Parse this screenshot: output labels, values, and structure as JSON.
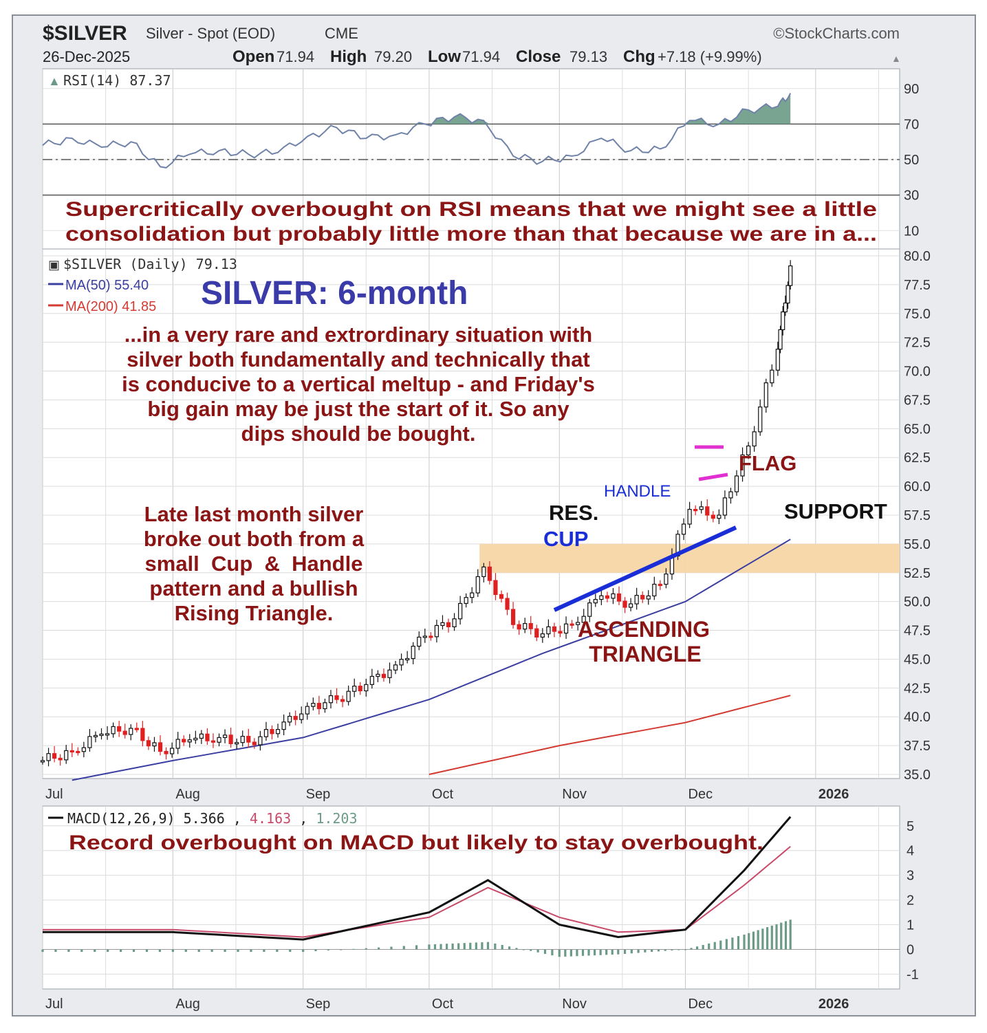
{
  "header": {
    "symbol": "$SILVER",
    "name": "Silver - Spot (EOD)",
    "exchange": "CME",
    "source": "©StockCharts.com",
    "date": "26-Dec-2025",
    "ohlc": [
      {
        "label": "Open",
        "value": "71.94"
      },
      {
        "label": "High",
        "value": "79.20"
      },
      {
        "label": "Low",
        "value": "71.94"
      },
      {
        "label": "Close",
        "value": "79.13"
      },
      {
        "label": "Chg",
        "value": "+7.18 (+9.99%)"
      }
    ],
    "up_arrow": "▲"
  },
  "annotations": {
    "rsi_note_line1": "Supercritically overbought on RSI means that we might see a little",
    "rsi_note_line2": "consolidation but probably little more than that because we are in a...",
    "title": "SILVER: 6-month",
    "main_note": [
      "...in a very rare and extrordinary situation with",
      "silver both fundamentally and technically that",
      "is conducive to a vertical meltup - and Friday's",
      "big gain may be just the start of it. So any",
      "dips should be bought."
    ],
    "left_note": [
      "Late last month silver",
      "broke out both from a",
      "small  Cup  &  Handle",
      "pattern and a bullish",
      "Rising Triangle."
    ],
    "handle": "HANDLE",
    "res": "RES.",
    "cup": "CUP",
    "support": "SUPPORT",
    "flag": "FLAG",
    "ascending": "ASCENDING",
    "triangle": "TRIANGLE",
    "macd_note": "Record overbought on MACD but likely to stay overbought."
  },
  "legends": {
    "rsi": "RSI(14) 87.37",
    "price": "$SILVER (Daily) 79.13",
    "ma50": "MA(50) 55.40",
    "ma200": "MA(200) 41.85",
    "macd_label": "MACD(12,26,9)",
    "macd_values": [
      "5.366",
      "4.163",
      "1.203"
    ]
  },
  "colors": {
    "panel_bg": "#ffffff",
    "frame_bg": "#e9ebee",
    "grid": "#c8c8c8",
    "rsi_line": "#6f82a8",
    "rsi_fill": "#6b9a86",
    "ma50": "#3a3ea0",
    "ma200": "#d43a32",
    "up_candle": "#111111",
    "down_candle": "#e02020",
    "note_red": "#8b1414",
    "title_blue": "#3a3aa8",
    "label_blue": "#1a2ed8",
    "zone": "#f7d6a6",
    "flag": "#e030d0",
    "macd_line": "#111111",
    "signal_line": "#c84a6a",
    "histogram": "#6b9a86"
  },
  "chart_data": [
    {
      "type": "line",
      "name": "RSI(14)",
      "x": [
        "2025-07-01",
        "2025-07-08",
        "2025-07-15",
        "2025-07-22",
        "2025-07-29",
        "2025-08-05",
        "2025-08-12",
        "2025-08-19",
        "2025-08-26",
        "2025-09-02",
        "2025-09-09",
        "2025-09-16",
        "2025-09-23",
        "2025-09-30",
        "2025-10-07",
        "2025-10-14",
        "2025-10-21",
        "2025-10-28",
        "2025-11-04",
        "2025-11-11",
        "2025-11-18",
        "2025-11-25",
        "2025-12-02",
        "2025-12-09",
        "2025-12-16",
        "2025-12-23",
        "2025-12-26"
      ],
      "values": [
        58,
        62,
        57,
        60,
        46,
        53,
        55,
        53,
        54,
        63,
        68,
        62,
        64,
        70,
        74,
        72,
        52,
        49,
        52,
        62,
        55,
        56,
        72,
        70,
        78,
        80,
        87.37
      ],
      "yticks": [
        10,
        30,
        50,
        70,
        90
      ],
      "reference_lines": [
        30,
        50,
        70
      ],
      "ylim": [
        0,
        100
      ]
    },
    {
      "type": "candlestick",
      "name": "$SILVER (Daily)",
      "x": [
        "2025-07-01",
        "2025-07-08",
        "2025-07-15",
        "2025-07-22",
        "2025-07-29",
        "2025-08-05",
        "2025-08-12",
        "2025-08-19",
        "2025-08-26",
        "2025-09-02",
        "2025-09-09",
        "2025-09-16",
        "2025-09-23",
        "2025-09-30",
        "2025-10-07",
        "2025-10-14",
        "2025-10-21",
        "2025-10-28",
        "2025-11-04",
        "2025-11-11",
        "2025-11-18",
        "2025-11-25",
        "2025-12-02",
        "2025-12-09",
        "2025-12-16",
        "2025-12-23",
        "2025-12-26"
      ],
      "close": [
        36.2,
        37.0,
        38.5,
        39.0,
        37.0,
        38.0,
        38.2,
        37.8,
        38.9,
        40.9,
        41.5,
        42.8,
        44.5,
        47.0,
        48.5,
        53.0,
        48.0,
        47.2,
        48.0,
        50.5,
        49.8,
        51.5,
        58.0,
        57.5,
        63.5,
        71.9,
        79.13
      ],
      "series": [
        {
          "name": "MA(50)",
          "x": [
            "2025-07-08",
            "2025-08-01",
            "2025-09-01",
            "2025-10-01",
            "2025-10-28",
            "2025-12-01",
            "2025-12-26"
          ],
          "values": [
            34.5,
            36.2,
            38.2,
            41.5,
            45.5,
            50.0,
            55.4
          ]
        },
        {
          "name": "MA(200)",
          "x": [
            "2025-10-01",
            "2025-11-01",
            "2025-12-01",
            "2025-12-26"
          ],
          "values": [
            35.0,
            37.5,
            39.5,
            41.85
          ]
        }
      ],
      "yticks": [
        35.0,
        37.5,
        40.0,
        42.5,
        45.0,
        47.5,
        50.0,
        52.5,
        55.0,
        57.5,
        60.0,
        62.5,
        65.0,
        67.5,
        70.0,
        72.5,
        75.0,
        77.5,
        80.0
      ],
      "ylim": [
        35,
        80
      ],
      "xticks": [
        "Jul",
        "Aug",
        "Sep",
        "Oct",
        "Nov",
        "Dec",
        "2026"
      ],
      "resistance_zone": [
        52.5,
        55.0
      ]
    },
    {
      "type": "line",
      "name": "MACD(12,26,9)",
      "x": [
        "2025-07-01",
        "2025-08-01",
        "2025-09-01",
        "2025-10-01",
        "2025-10-15",
        "2025-11-01",
        "2025-11-15",
        "2025-12-01",
        "2025-12-15",
        "2025-12-26"
      ],
      "series": [
        {
          "name": "MACD",
          "values": [
            0.7,
            0.7,
            0.4,
            1.5,
            2.8,
            1.0,
            0.5,
            0.8,
            3.2,
            5.366
          ]
        },
        {
          "name": "Signal",
          "values": [
            0.8,
            0.8,
            0.5,
            1.3,
            2.5,
            1.3,
            0.7,
            0.8,
            2.6,
            4.163
          ]
        },
        {
          "name": "Histogram",
          "values": [
            -0.1,
            -0.1,
            -0.1,
            0.2,
            0.3,
            -0.3,
            -0.2,
            0.0,
            0.6,
            1.203
          ]
        }
      ],
      "yticks": [
        -1,
        0,
        1,
        2,
        3,
        4,
        5
      ],
      "ylim": [
        -1.6,
        5.8
      ],
      "xticks": [
        "Jul",
        "Aug",
        "Sep",
        "Oct",
        "Nov",
        "Dec",
        "2026"
      ]
    }
  ]
}
